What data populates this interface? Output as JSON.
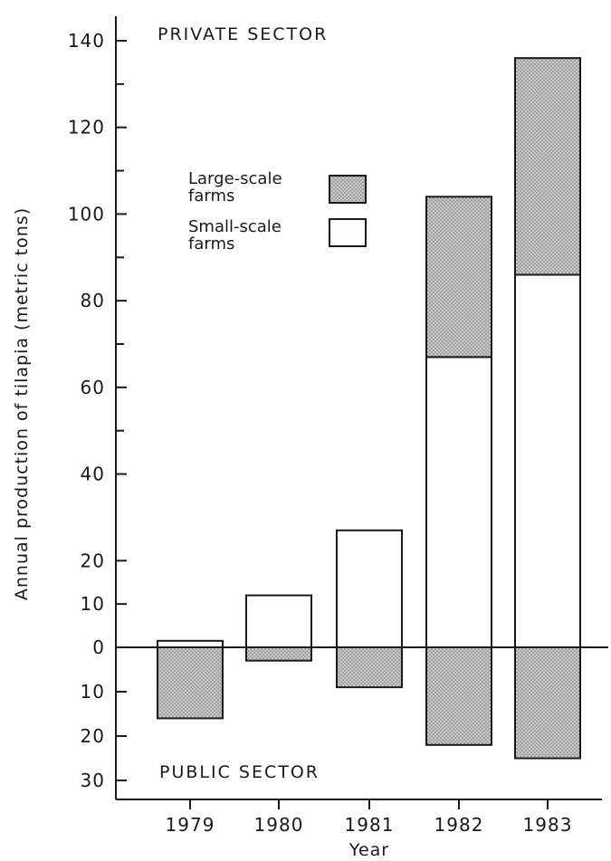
{
  "chart_data": {
    "type": "bar",
    "stacked": true,
    "categories": [
      "1979",
      "1980",
      "1981",
      "1982",
      "1983"
    ],
    "series": [
      {
        "name": "Small-scale farms",
        "sector": "private",
        "pattern": "white",
        "values": [
          1.5,
          12,
          27,
          67,
          86
        ]
      },
      {
        "name": "Large-scale farms",
        "sector": "private",
        "pattern": "stippled",
        "values": [
          0,
          0,
          0,
          37,
          50
        ]
      },
      {
        "name": "",
        "sector": "public",
        "pattern": "stippled",
        "values": [
          16,
          3,
          9,
          22,
          25
        ]
      }
    ],
    "ylabel": "Annual production of tilapia (metric tons)",
    "xlabel": "Year",
    "sector_labels": {
      "top": "PRIVATE SECTOR",
      "bottom": "PUBLIC SECTOR"
    },
    "y_ticks_positive": [
      {
        "value": 140,
        "label": "140"
      },
      {
        "value": 120,
        "label": "120"
      },
      {
        "value": 100,
        "label": "100"
      },
      {
        "value": 80,
        "label": "80"
      },
      {
        "value": 60,
        "label": "60"
      },
      {
        "value": 40,
        "label": "40"
      },
      {
        "value": 20,
        "label": "20"
      },
      {
        "value": 10,
        "label": "10"
      },
      {
        "value": 0,
        "label": "0"
      }
    ],
    "y_ticks_negative": [
      {
        "value": 10,
        "label": "10"
      },
      {
        "value": 20,
        "label": "20"
      },
      {
        "value": 30,
        "label": "30"
      }
    ],
    "ylim_private": [
      0,
      140
    ],
    "ylim_public": [
      0,
      30
    ],
    "legend": [
      {
        "label_lines": [
          "Large-scale",
          "farms"
        ],
        "pattern": "stippled"
      },
      {
        "label_lines": [
          "Small-scale",
          "farms"
        ],
        "pattern": "white"
      }
    ],
    "legend_position": "upper-left",
    "grid": false,
    "colors": {
      "ink": "#1a1a1a",
      "stipple_bg": "#c9c9c9",
      "stipple_dot": "#6e6e6e",
      "open": "#ffffff"
    }
  }
}
